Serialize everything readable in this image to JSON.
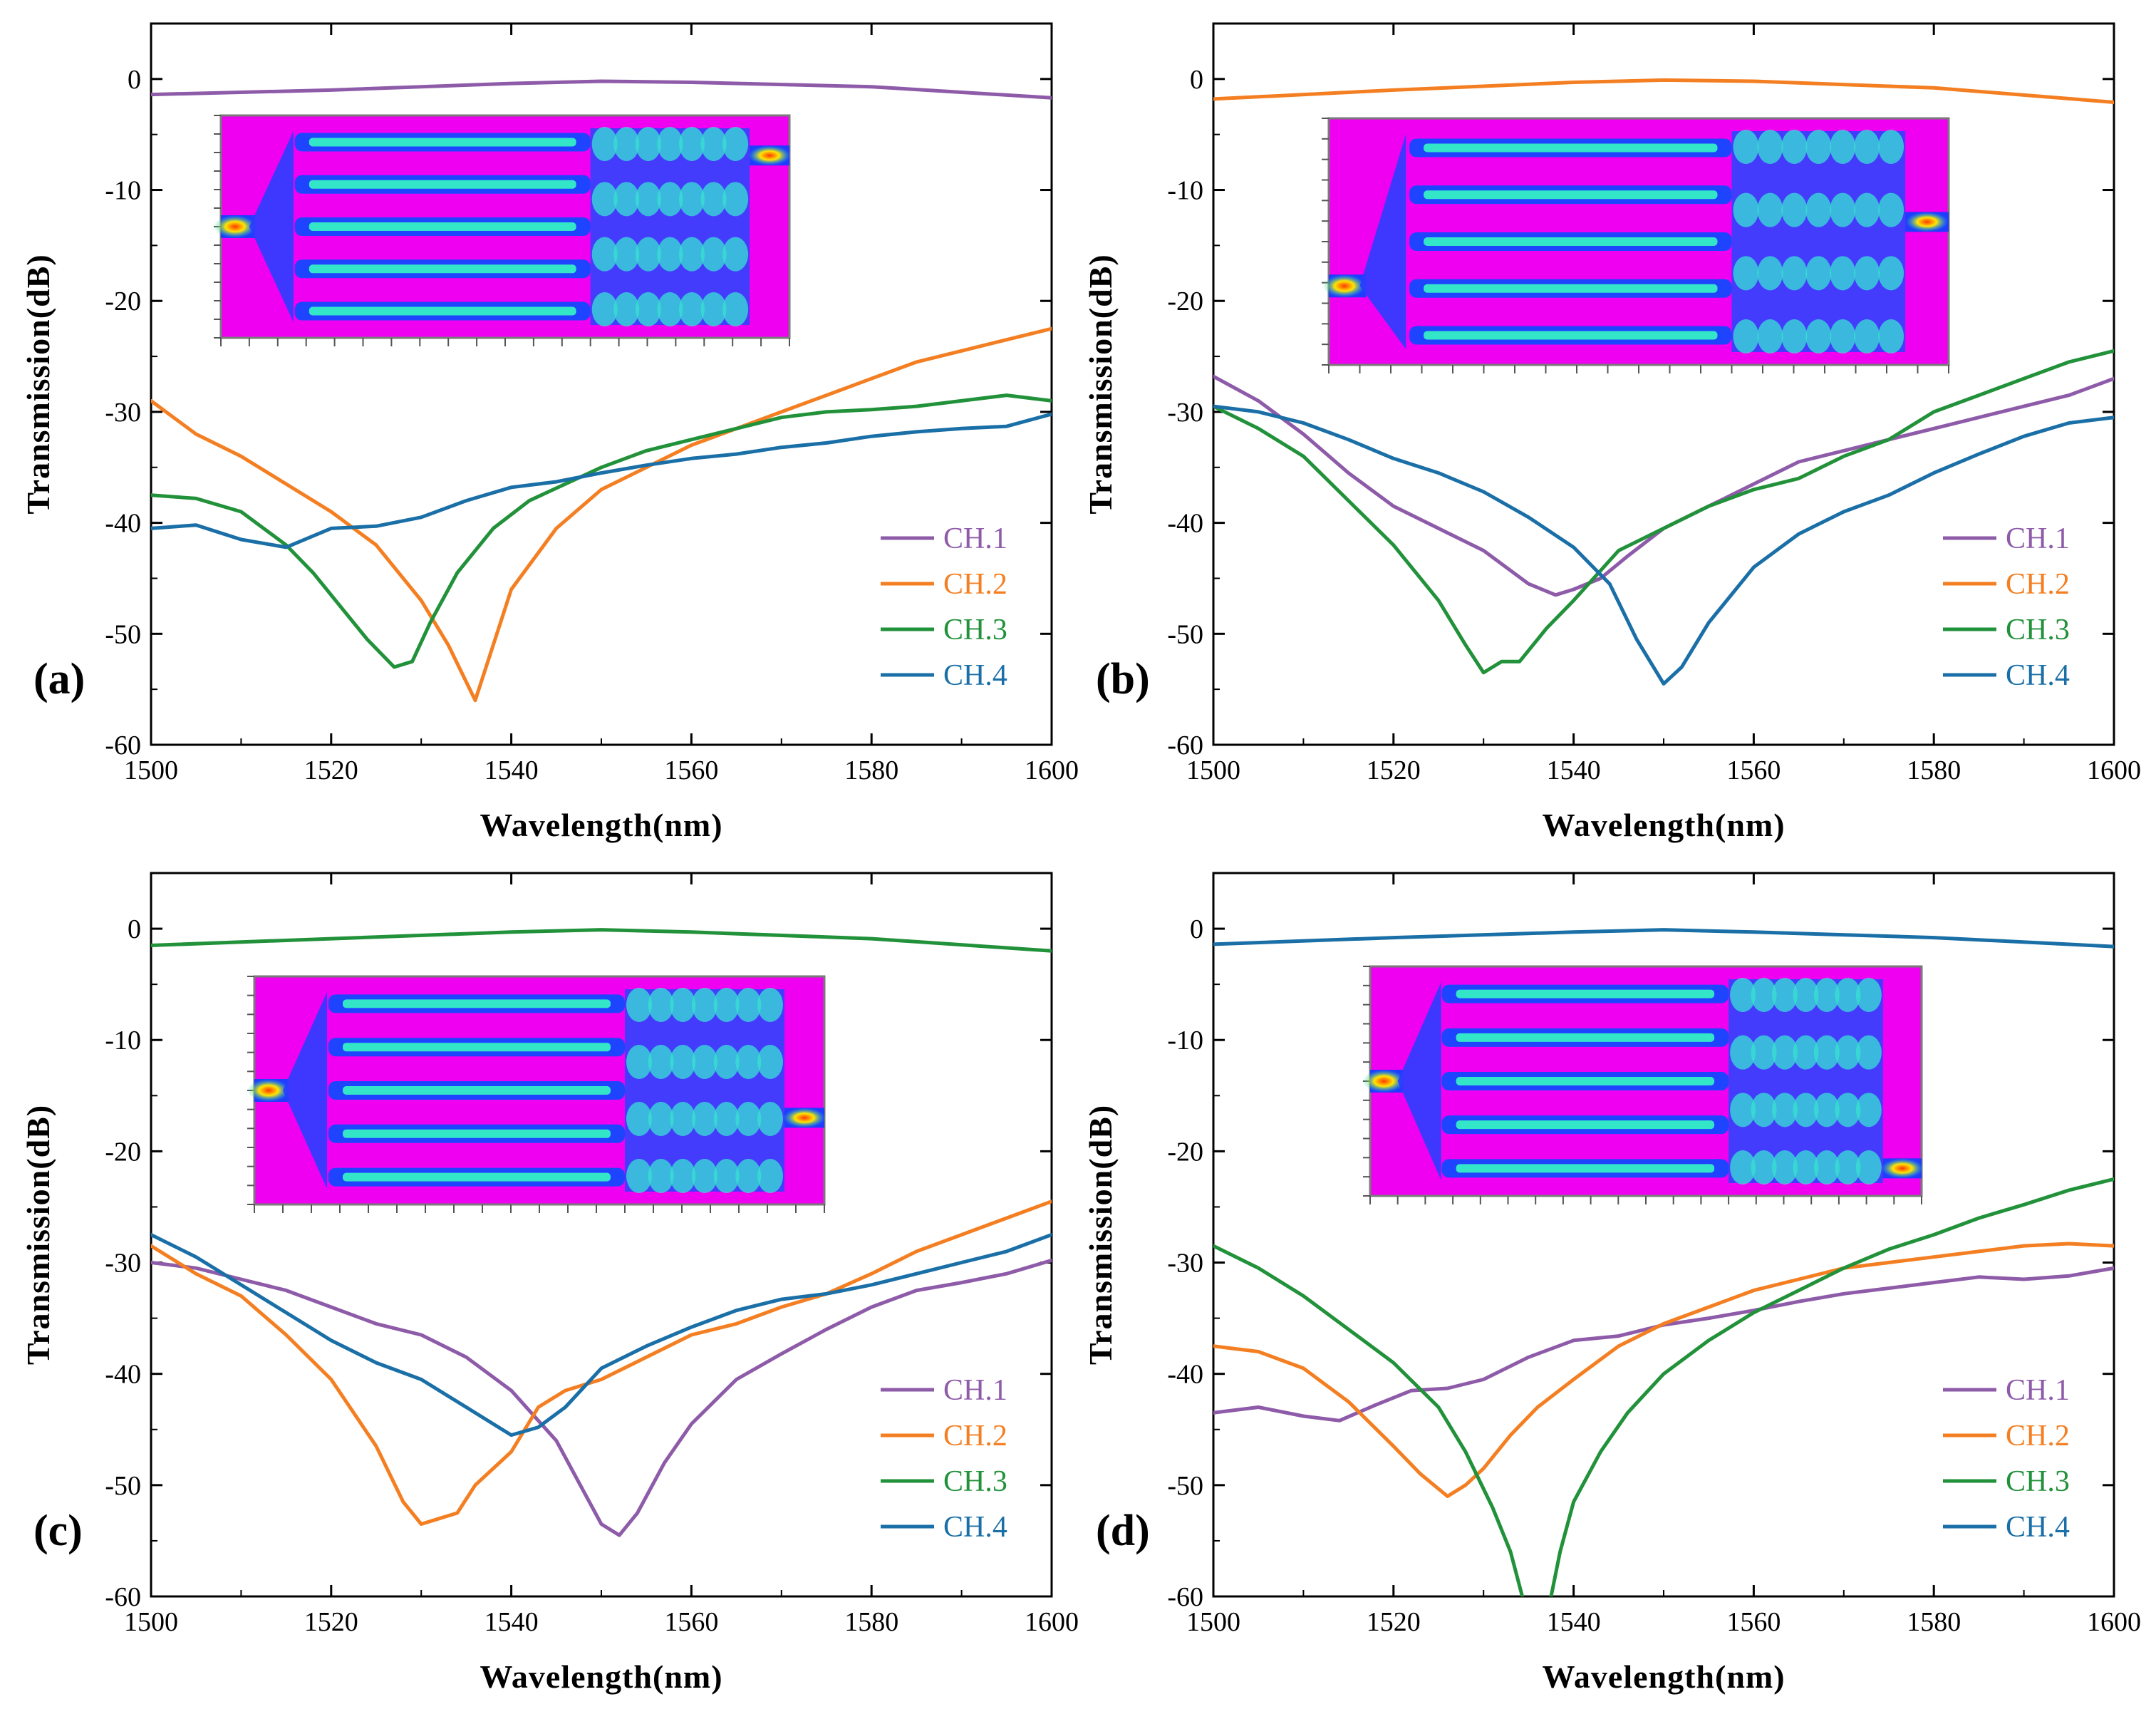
{
  "chart_data": [
    {
      "type": "line",
      "panel_label": "(a)",
      "xlabel": "Wavelength(nm)",
      "ylabel": "Transmission(dB)",
      "xlim": [
        1500,
        1600
      ],
      "ylim": [
        -60,
        5
      ],
      "xticks": [
        1500,
        1520,
        1540,
        1560,
        1580,
        1600
      ],
      "yticks": [
        0,
        -10,
        -20,
        -30,
        -40,
        -50,
        -60
      ],
      "legend_position": "bottom-right",
      "inset": "field-distribution-map",
      "series": [
        {
          "name": "CH.1",
          "color": "#8e5ba9",
          "x": [
            1500,
            1520,
            1540,
            1550,
            1560,
            1580,
            1600
          ],
          "y": [
            -1.4,
            -1.0,
            -0.4,
            -0.2,
            -0.3,
            -0.7,
            -1.7
          ]
        },
        {
          "name": "CH.2",
          "color": "#f47f22",
          "x": [
            1500,
            1505,
            1510,
            1515,
            1520,
            1525,
            1530,
            1533,
            1536,
            1538,
            1540,
            1545,
            1550,
            1555,
            1560,
            1565,
            1570,
            1575,
            1580,
            1585,
            1590,
            1595,
            1600
          ],
          "y": [
            -29,
            -32,
            -34,
            -36.5,
            -39,
            -42,
            -47,
            -51,
            -56,
            -51,
            -46,
            -40.5,
            -37,
            -35,
            -33,
            -31.5,
            -30,
            -28.5,
            -27,
            -25.5,
            -24.5,
            -23.5,
            -22.5
          ]
        },
        {
          "name": "CH.3",
          "color": "#21913a",
          "x": [
            1500,
            1505,
            1510,
            1515,
            1518,
            1521,
            1524,
            1527,
            1529,
            1531,
            1534,
            1538,
            1542,
            1546,
            1550,
            1555,
            1560,
            1565,
            1570,
            1575,
            1580,
            1585,
            1590,
            1595,
            1600
          ],
          "y": [
            -37.5,
            -37.8,
            -39,
            -42,
            -44.5,
            -47.5,
            -50.5,
            -53,
            -52.5,
            -49,
            -44.5,
            -40.5,
            -38,
            -36.5,
            -35,
            -33.5,
            -32.5,
            -31.5,
            -30.5,
            -30,
            -29.8,
            -29.5,
            -29,
            -28.5,
            -29
          ]
        },
        {
          "name": "CH.4",
          "color": "#1a6fa7",
          "x": [
            1500,
            1505,
            1510,
            1515,
            1520,
            1525,
            1530,
            1535,
            1540,
            1545,
            1550,
            1555,
            1560,
            1565,
            1570,
            1575,
            1580,
            1585,
            1590,
            1595,
            1600
          ],
          "y": [
            -40.5,
            -40.2,
            -41.5,
            -42.2,
            -40.5,
            -40.3,
            -39.5,
            -38,
            -36.8,
            -36.3,
            -35.5,
            -34.8,
            -34.2,
            -33.8,
            -33.2,
            -32.8,
            -32.2,
            -31.8,
            -31.5,
            -31.3,
            -30.2
          ]
        }
      ]
    },
    {
      "type": "line",
      "panel_label": "(b)",
      "xlabel": "Wavelength(nm)",
      "ylabel": "Transmission(dB)",
      "xlim": [
        1500,
        1600
      ],
      "ylim": [
        -60,
        5
      ],
      "xticks": [
        1500,
        1520,
        1540,
        1560,
        1580,
        1600
      ],
      "yticks": [
        0,
        -10,
        -20,
        -30,
        -40,
        -50,
        -60
      ],
      "legend_position": "bottom-right",
      "inset": "field-distribution-map",
      "series": [
        {
          "name": "CH.1",
          "color": "#8e5ba9",
          "x": [
            1500,
            1505,
            1510,
            1515,
            1520,
            1525,
            1530,
            1535,
            1538,
            1540,
            1543,
            1546,
            1550,
            1555,
            1560,
            1565,
            1570,
            1575,
            1580,
            1585,
            1590,
            1595,
            1600
          ],
          "y": [
            -26.8,
            -29,
            -32,
            -35.5,
            -38.5,
            -40.5,
            -42.5,
            -45.5,
            -46.5,
            -46,
            -45,
            -43,
            -40.5,
            -38.5,
            -36.5,
            -34.5,
            -33.5,
            -32.5,
            -31.5,
            -30.5,
            -29.5,
            -28.5,
            -27
          ]
        },
        {
          "name": "CH.2",
          "color": "#f47f22",
          "x": [
            1500,
            1520,
            1540,
            1550,
            1560,
            1580,
            1600
          ],
          "y": [
            -1.8,
            -1.0,
            -0.3,
            -0.1,
            -0.2,
            -0.8,
            -2.1
          ]
        },
        {
          "name": "CH.3",
          "color": "#21913a",
          "x": [
            1500,
            1505,
            1510,
            1515,
            1520,
            1525,
            1528,
            1530,
            1532,
            1534,
            1537,
            1540,
            1545,
            1550,
            1555,
            1560,
            1565,
            1570,
            1575,
            1580,
            1585,
            1590,
            1595,
            1600
          ],
          "y": [
            -29.5,
            -31.5,
            -34,
            -38,
            -42,
            -47,
            -51,
            -53.5,
            -52.5,
            -52.5,
            -49.5,
            -47,
            -42.5,
            -40.5,
            -38.5,
            -37,
            -36,
            -34,
            -32.5,
            -30,
            -28.5,
            -27,
            -25.5,
            -24.5
          ]
        },
        {
          "name": "CH.4",
          "color": "#1a6fa7",
          "x": [
            1500,
            1505,
            1510,
            1515,
            1520,
            1525,
            1530,
            1535,
            1540,
            1544,
            1547,
            1550,
            1552,
            1555,
            1560,
            1565,
            1570,
            1575,
            1580,
            1585,
            1590,
            1595,
            1600
          ],
          "y": [
            -29.5,
            -30,
            -31,
            -32.5,
            -34.2,
            -35.5,
            -37.2,
            -39.5,
            -42.2,
            -45.5,
            -50.5,
            -54.5,
            -53,
            -49,
            -44,
            -41,
            -39,
            -37.5,
            -35.5,
            -33.8,
            -32.2,
            -31,
            -30.5
          ]
        }
      ]
    },
    {
      "type": "line",
      "panel_label": "(c)",
      "xlabel": "Wavelength(nm)",
      "ylabel": "Transmission(dB)",
      "xlim": [
        1500,
        1600
      ],
      "ylim": [
        -60,
        5
      ],
      "xticks": [
        1500,
        1520,
        1540,
        1560,
        1580,
        1600
      ],
      "yticks": [
        0,
        -10,
        -20,
        -30,
        -40,
        -50,
        -60
      ],
      "legend_position": "bottom-right",
      "inset": "field-distribution-map",
      "series": [
        {
          "name": "CH.1",
          "color": "#8e5ba9",
          "x": [
            1500,
            1505,
            1510,
            1515,
            1520,
            1525,
            1530,
            1535,
            1540,
            1545,
            1548,
            1550,
            1552,
            1554,
            1557,
            1560,
            1565,
            1570,
            1575,
            1580,
            1585,
            1590,
            1595,
            1600
          ],
          "y": [
            -30,
            -30.5,
            -31.5,
            -32.5,
            -34,
            -35.5,
            -36.5,
            -38.5,
            -41.5,
            -46,
            -50.5,
            -53.5,
            -54.5,
            -52.5,
            -48,
            -44.5,
            -40.5,
            -38.2,
            -36,
            -34,
            -32.5,
            -31.8,
            -31,
            -29.8
          ]
        },
        {
          "name": "CH.2",
          "color": "#f47f22",
          "x": [
            1500,
            1505,
            1510,
            1515,
            1520,
            1525,
            1528,
            1530,
            1532,
            1534,
            1536,
            1540,
            1543,
            1546,
            1550,
            1555,
            1560,
            1565,
            1570,
            1575,
            1580,
            1585,
            1590,
            1595,
            1600
          ],
          "y": [
            -28.5,
            -31,
            -33,
            -36.5,
            -40.5,
            -46.5,
            -51.5,
            -53.5,
            -53,
            -52.5,
            -50,
            -47,
            -43,
            -41.5,
            -40.5,
            -38.5,
            -36.5,
            -35.5,
            -34,
            -32.8,
            -31,
            -29,
            -27.5,
            -26,
            -24.5
          ]
        },
        {
          "name": "CH.3",
          "color": "#21913a",
          "x": [
            1500,
            1520,
            1540,
            1550,
            1560,
            1580,
            1600
          ],
          "y": [
            -1.5,
            -0.9,
            -0.3,
            -0.1,
            -0.3,
            -0.9,
            -2.0
          ]
        },
        {
          "name": "CH.4",
          "color": "#1a6fa7",
          "x": [
            1500,
            1505,
            1510,
            1515,
            1520,
            1525,
            1530,
            1535,
            1538,
            1540,
            1543,
            1546,
            1550,
            1555,
            1560,
            1565,
            1570,
            1575,
            1580,
            1585,
            1590,
            1595,
            1600
          ],
          "y": [
            -27.5,
            -29.5,
            -32,
            -34.5,
            -37,
            -39,
            -40.5,
            -43,
            -44.5,
            -45.5,
            -44.8,
            -43,
            -39.5,
            -37.5,
            -35.8,
            -34.3,
            -33.3,
            -32.8,
            -32,
            -31,
            -30,
            -29,
            -27.5
          ]
        }
      ]
    },
    {
      "type": "line",
      "panel_label": "(d)",
      "xlabel": "Wavelength(nm)",
      "ylabel": "Transmission(dB)",
      "xlim": [
        1500,
        1600
      ],
      "ylim": [
        -60,
        5
      ],
      "xticks": [
        1500,
        1520,
        1540,
        1560,
        1580,
        1600
      ],
      "yticks": [
        0,
        -10,
        -20,
        -30,
        -40,
        -50,
        -60
      ],
      "legend_position": "bottom-right",
      "inset": "field-distribution-map",
      "series": [
        {
          "name": "CH.1",
          "color": "#8e5ba9",
          "x": [
            1500,
            1505,
            1510,
            1514,
            1518,
            1522,
            1526,
            1530,
            1535,
            1540,
            1545,
            1550,
            1555,
            1560,
            1565,
            1570,
            1575,
            1580,
            1585,
            1590,
            1595,
            1600
          ],
          "y": [
            -43.5,
            -43,
            -43.8,
            -44.2,
            -42.8,
            -41.5,
            -41.3,
            -40.5,
            -38.5,
            -37,
            -36.6,
            -35.6,
            -35,
            -34.3,
            -33.5,
            -32.8,
            -32.3,
            -31.8,
            -31.3,
            -31.5,
            -31.2,
            -30.5
          ]
        },
        {
          "name": "CH.2",
          "color": "#f47f22",
          "x": [
            1500,
            1505,
            1510,
            1515,
            1520,
            1523,
            1526,
            1528,
            1530,
            1533,
            1536,
            1540,
            1545,
            1550,
            1555,
            1560,
            1565,
            1570,
            1575,
            1580,
            1585,
            1590,
            1595,
            1600
          ],
          "y": [
            -37.5,
            -38,
            -39.5,
            -42.5,
            -46.5,
            -49,
            -51,
            -50,
            -48.5,
            -45.5,
            -43,
            -40.5,
            -37.5,
            -35.5,
            -34,
            -32.5,
            -31.5,
            -30.5,
            -30,
            -29.5,
            -29,
            -28.5,
            -28.3,
            -28.5
          ]
        },
        {
          "name": "CH.3",
          "color": "#21913a",
          "x": [
            1500,
            1505,
            1510,
            1515,
            1520,
            1525,
            1528,
            1531,
            1533,
            1534.3
          ],
          "y": [
            -28.5,
            -30.5,
            -33,
            -36,
            -39,
            -43,
            -47,
            -52,
            -56,
            -60
          ]
        },
        {
          "name": "CH.3",
          "color": "#21913a",
          "x": [
            1537.5,
            1538.5,
            1540,
            1543,
            1546,
            1550,
            1555,
            1560,
            1565,
            1570,
            1575,
            1580,
            1585,
            1590,
            1595,
            1600
          ],
          "y": [
            -60,
            -56,
            -51.5,
            -47,
            -43.5,
            -40,
            -37,
            -34.5,
            -32.5,
            -30.5,
            -28.8,
            -27.5,
            -26,
            -24.8,
            -23.5,
            -22.5
          ]
        },
        {
          "name": "CH.4",
          "color": "#1a6fa7",
          "x": [
            1500,
            1520,
            1540,
            1550,
            1560,
            1580,
            1600
          ],
          "y": [
            -1.4,
            -0.8,
            -0.3,
            -0.1,
            -0.3,
            -0.8,
            -1.6
          ]
        }
      ]
    }
  ]
}
